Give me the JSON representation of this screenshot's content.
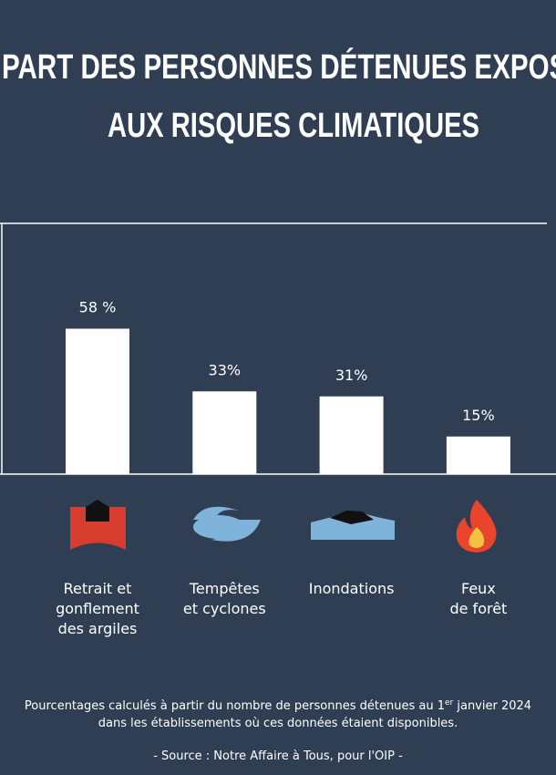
{
  "chart_data": {
    "type": "bar",
    "title": [
      "PART DES PERSONNES DÉTENUES EXPOSÉ",
      "AUX RISQUES CLIMATIQUES"
    ],
    "categories": [
      "Retrait et\ngonflement\ndes argiles",
      "Tempêtes\net cyclones",
      "Inondations",
      "Feux\nde forêt"
    ],
    "values": [
      58,
      33,
      31,
      15
    ],
    "value_labels": [
      "58 %",
      "33%",
      "31%",
      "15%"
    ],
    "color": "#ffffff",
    "ylim": [
      0,
      100
    ],
    "note": [
      "Pourcentages calculés à partir du nombre de personnes détenues au 1",
      "er",
      " janvier 2024",
      "dans les établissements où ces données étaient disponibles."
    ],
    "source": "- Source : Notre Affaire à Tous, pour l'OIP -"
  }
}
